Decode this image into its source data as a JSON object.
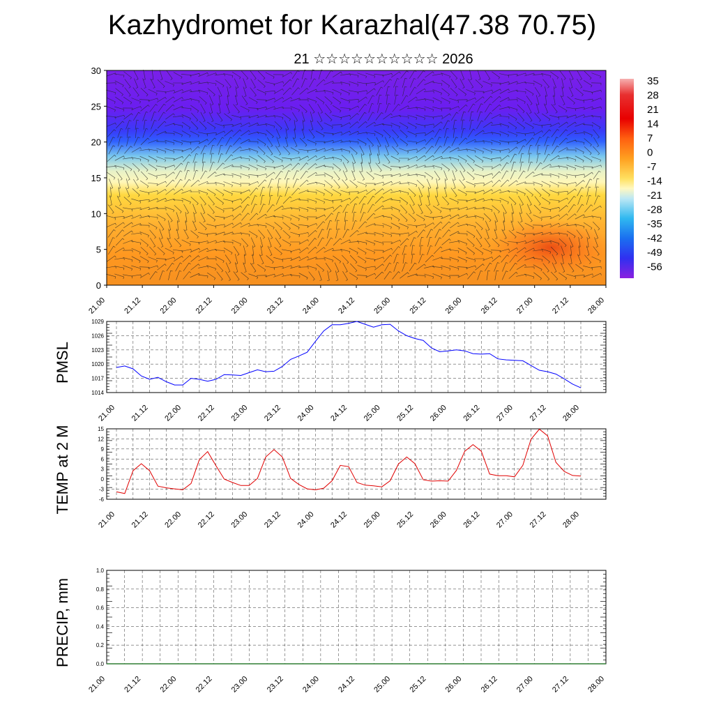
{
  "title": "Kazhydromet for Karazhal(47.38 70.75)",
  "subtitle": "21 ☆☆☆☆☆☆☆☆☆☆ 2026",
  "time_labels": [
    "21.00",
    "21.12",
    "22.00",
    "22.12",
    "23.00",
    "23.12",
    "24.00",
    "24.12",
    "25.00",
    "25.12",
    "26.00",
    "26.12",
    "27.00",
    "27.12",
    "28.00"
  ],
  "colorbar_labels": [
    "35",
    "28",
    "21",
    "14",
    "7",
    "0",
    "-7",
    "-14",
    "-21",
    "-28",
    "-35",
    "-42",
    "-49",
    "-56"
  ],
  "chart_data": [
    {
      "type": "heatmap",
      "name": "cross-section",
      "ylim": [
        0,
        30
      ],
      "y_ticks": [
        0,
        5,
        10,
        15,
        20,
        25,
        30
      ],
      "colorbar": {
        "min": -56,
        "max": 35
      }
    },
    {
      "type": "line",
      "ylabel": "PMSL",
      "ylim": [
        1014,
        1029
      ],
      "y_ticks": [
        1014,
        1017,
        1020,
        1023,
        1026,
        1029
      ],
      "line_color": "#0000ff",
      "x": [
        0,
        3,
        6,
        9,
        12,
        15,
        18,
        21,
        24,
        27,
        30,
        33,
        36,
        39,
        42,
        45,
        48,
        51,
        54,
        57,
        60,
        63,
        66,
        69,
        72,
        75,
        78,
        81,
        84,
        87,
        90,
        93,
        96,
        99,
        102,
        105,
        108,
        111,
        114,
        117,
        120,
        123,
        126,
        129,
        132,
        135,
        138,
        141,
        144,
        147,
        150,
        153,
        156,
        159,
        162,
        165,
        168
      ],
      "values": [
        1019.3,
        1019.6,
        1019.0,
        1017.5,
        1016.8,
        1017.2,
        1016.3,
        1015.6,
        1015.6,
        1017.0,
        1016.8,
        1016.4,
        1016.8,
        1017.8,
        1017.7,
        1017.6,
        1018.2,
        1018.8,
        1018.4,
        1018.5,
        1019.5,
        1021.0,
        1021.7,
        1022.5,
        1024.8,
        1027.0,
        1028.3,
        1028.3,
        1028.6,
        1029.0,
        1028.4,
        1027.8,
        1028.3,
        1028.4,
        1027.0,
        1026.0,
        1025.4,
        1025.0,
        1023.4,
        1022.6,
        1022.8,
        1023.0,
        1022.8,
        1022.2,
        1022.1,
        1022.2,
        1021.1,
        1020.9,
        1020.8,
        1020.7,
        1019.7,
        1018.7,
        1018.4,
        1017.9,
        1016.9,
        1015.8,
        1015.0
      ]
    },
    {
      "type": "line",
      "ylabel": "TEMP at 2 M",
      "ylim": [
        -6,
        15
      ],
      "y_ticks": [
        -6,
        -3,
        0,
        3,
        6,
        9,
        12,
        15
      ],
      "line_color": "#e00000",
      "x": [
        0,
        3,
        6,
        9,
        12,
        15,
        18,
        21,
        24,
        27,
        30,
        33,
        36,
        39,
        42,
        45,
        48,
        51,
        54,
        57,
        60,
        63,
        66,
        69,
        72,
        75,
        78,
        81,
        84,
        87,
        90,
        93,
        96,
        99,
        102,
        105,
        108,
        111,
        114,
        117,
        120,
        123,
        126,
        129,
        132,
        135,
        138,
        141,
        144,
        147,
        150,
        153,
        156,
        159,
        162,
        165,
        168
      ],
      "values": [
        -3.8,
        -4.3,
        2.5,
        4.6,
        2.5,
        -2.1,
        -2.6,
        -2.9,
        -3.2,
        -1.3,
        5.8,
        8.2,
        4.0,
        0.0,
        -1.0,
        -1.9,
        -1.9,
        0.2,
        6.6,
        8.8,
        6.6,
        0.2,
        -1.6,
        -2.9,
        -3.2,
        -2.7,
        -0.5,
        4.1,
        3.7,
        -1.0,
        -1.8,
        -2.0,
        -2.3,
        -0.5,
        4.5,
        6.6,
        4.6,
        -0.2,
        -0.6,
        -0.5,
        -0.6,
        2.6,
        8.3,
        10.3,
        8.3,
        1.5,
        1.0,
        1.0,
        0.7,
        4.1,
        11.9,
        14.9,
        12.9,
        5.0,
        2.3,
        1.1,
        0.9
      ]
    },
    {
      "type": "line",
      "ylabel": "PRECIP, mm",
      "ylim": [
        0,
        1.0
      ],
      "y_ticks": [
        "0.0",
        "0.2",
        "0.4",
        "0.6",
        "0.8",
        "1.0"
      ],
      "line_color": "#2e7d32",
      "x": [
        0,
        168
      ],
      "values": [
        0,
        0
      ]
    }
  ]
}
